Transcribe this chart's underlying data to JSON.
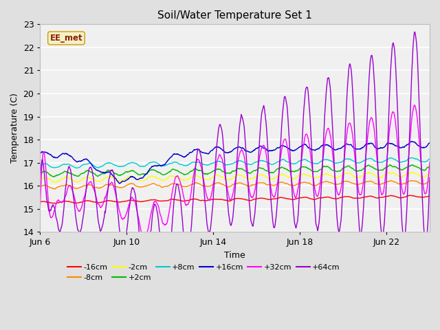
{
  "title": "Soil/Water Temperature Set 1",
  "xlabel": "Time",
  "ylabel": "Temperature (C)",
  "ylim": [
    14.0,
    23.0
  ],
  "yticks": [
    14.0,
    15.0,
    16.0,
    17.0,
    18.0,
    19.0,
    20.0,
    21.0,
    22.0,
    23.0
  ],
  "xtick_positions": [
    0,
    4,
    8,
    12,
    16
  ],
  "xtick_labels": [
    "Jun 6",
    "Jun 10",
    "Jun 14",
    "Jun 18",
    "Jun 22"
  ],
  "xlim": [
    0,
    18
  ],
  "bg_color": "#e0e0e0",
  "plot_bg_color": "#f0f0f0",
  "watermark_text": "EE_met",
  "watermark_bg": "#f5f0c8",
  "watermark_border": "#8b2000",
  "series": [
    {
      "label": "-16cm",
      "color": "#ff0000"
    },
    {
      "label": "-8cm",
      "color": "#ff8800"
    },
    {
      "label": "-2cm",
      "color": "#ffff00"
    },
    {
      "label": "+2cm",
      "color": "#00bb00"
    },
    {
      "label": "+8cm",
      "color": "#00cccc"
    },
    {
      "label": "+16cm",
      "color": "#0000cc"
    },
    {
      "label": "+32cm",
      "color": "#ff00ff"
    },
    {
      "label": "+64cm",
      "color": "#9900cc"
    }
  ]
}
